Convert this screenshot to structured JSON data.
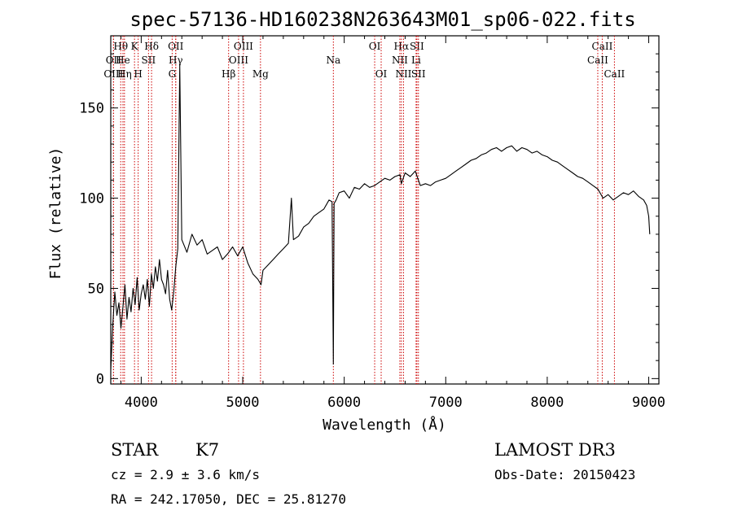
{
  "chart_data": {
    "type": "line",
    "title": "spec-57136-HD160238N263643M01_sp06-022.fits",
    "xlabel": "Wavelength (Å)",
    "ylabel": "Flux (relative)",
    "xlim": [
      3700,
      9100
    ],
    "ylim": [
      -3,
      190
    ],
    "x_ticks": [
      4000,
      5000,
      6000,
      7000,
      8000,
      9000
    ],
    "x_tick_labels": [
      "4000",
      "5000",
      "6000",
      "7000",
      "8000",
      "9000"
    ],
    "y_ticks": [
      0,
      50,
      100,
      150
    ],
    "y_tick_labels": [
      "0",
      "50",
      "100",
      "150"
    ],
    "grid": false,
    "series": [
      {
        "name": "flux",
        "x": [
          3700,
          3720,
          3740,
          3760,
          3780,
          3800,
          3820,
          3840,
          3860,
          3880,
          3900,
          3920,
          3940,
          3960,
          3980,
          4000,
          4020,
          4040,
          4060,
          4080,
          4100,
          4120,
          4140,
          4160,
          4180,
          4200,
          4220,
          4240,
          4260,
          4280,
          4300,
          4320,
          4340,
          4360,
          4380,
          4400,
          4450,
          4500,
          4550,
          4600,
          4650,
          4700,
          4750,
          4800,
          4850,
          4900,
          4950,
          5000,
          5050,
          5100,
          5150,
          5180,
          5200,
          5250,
          5300,
          5350,
          5400,
          5450,
          5480,
          5500,
          5550,
          5600,
          5650,
          5700,
          5750,
          5800,
          5850,
          5880,
          5893,
          5900,
          5920,
          5950,
          6000,
          6050,
          6100,
          6150,
          6200,
          6250,
          6300,
          6350,
          6400,
          6450,
          6500,
          6550,
          6563,
          6600,
          6650,
          6700,
          6750,
          6800,
          6850,
          6900,
          6950,
          7000,
          7050,
          7100,
          7150,
          7200,
          7250,
          7300,
          7350,
          7400,
          7450,
          7500,
          7550,
          7600,
          7650,
          7700,
          7750,
          7800,
          7850,
          7900,
          7950,
          8000,
          8050,
          8100,
          8150,
          8200,
          8250,
          8300,
          8350,
          8400,
          8450,
          8500,
          8550,
          8600,
          8650,
          8700,
          8750,
          8800,
          8850,
          8900,
          8950,
          8980,
          9000,
          9010
        ],
        "y": [
          5,
          30,
          48,
          35,
          42,
          28,
          40,
          52,
          33,
          45,
          37,
          50,
          41,
          56,
          38,
          47,
          52,
          44,
          55,
          40,
          58,
          50,
          62,
          54,
          66,
          55,
          52,
          47,
          60,
          44,
          38,
          48,
          62,
          72,
          174,
          77,
          70,
          80,
          74,
          77,
          69,
          71,
          73,
          66,
          69,
          73,
          68,
          73,
          64,
          58,
          55,
          52,
          60,
          63,
          66,
          69,
          72,
          75,
          100,
          77,
          79,
          84,
          86,
          90,
          92,
          94,
          99,
          98,
          8,
          97,
          99,
          103,
          104,
          100,
          106,
          105,
          108,
          106,
          107,
          109,
          111,
          110,
          112,
          113,
          108,
          114,
          112,
          115,
          107,
          108,
          107,
          109,
          110,
          111,
          113,
          115,
          117,
          119,
          121,
          122,
          124,
          125,
          127,
          128,
          126,
          128,
          129,
          126,
          128,
          127,
          125,
          126,
          124,
          123,
          121,
          120,
          118,
          116,
          114,
          112,
          111,
          109,
          107,
          105,
          100,
          102,
          99,
          101,
          103,
          102,
          104,
          101,
          99,
          96,
          90,
          80
        ]
      }
    ],
    "line_markers": [
      {
        "label": "Hθ",
        "wave": 3798,
        "row": 1
      },
      {
        "label": "OII",
        "wave": 3727,
        "row": 2
      },
      {
        "label": "OIII",
        "wave": 3727,
        "row": 3
      },
      {
        "label": "He",
        "wave": 3820,
        "row": 2
      },
      {
        "label": "Hη",
        "wave": 3835,
        "row": 3
      },
      {
        "label": "K",
        "wave": 3934,
        "row": 1
      },
      {
        "label": "H",
        "wave": 3970,
        "row": 3
      },
      {
        "label": "SII",
        "wave": 4072,
        "row": 2
      },
      {
        "label": "Hδ",
        "wave": 4102,
        "row": 1
      },
      {
        "label": "OII",
        "wave": 4340,
        "row": 1
      },
      {
        "label": "Hγ",
        "wave": 4340,
        "row": 2
      },
      {
        "label": "G",
        "wave": 4305,
        "row": 3
      },
      {
        "label": "OIII",
        "wave": 5007,
        "row": 1
      },
      {
        "label": "OIII",
        "wave": 4959,
        "row": 2
      },
      {
        "label": "Hβ",
        "wave": 4861,
        "row": 3
      },
      {
        "label": "Mg",
        "wave": 5175,
        "row": 3
      },
      {
        "label": "Na",
        "wave": 5893,
        "row": 2
      },
      {
        "label": "OI",
        "wave": 6300,
        "row": 1
      },
      {
        "label": "OI",
        "wave": 6364,
        "row": 3
      },
      {
        "label": "Hα",
        "wave": 6563,
        "row": 1
      },
      {
        "label": "NII",
        "wave": 6548,
        "row": 2
      },
      {
        "label": "NII",
        "wave": 6584,
        "row": 3
      },
      {
        "label": "SII",
        "wave": 6716,
        "row": 1
      },
      {
        "label": "Li",
        "wave": 6708,
        "row": 2
      },
      {
        "label": "SII",
        "wave": 6731,
        "row": 3
      },
      {
        "label": "CaII",
        "wave": 8542,
        "row": 1
      },
      {
        "label": "CaII",
        "wave": 8498,
        "row": 2
      },
      {
        "label": "CaII",
        "wave": 8662,
        "row": 3
      }
    ],
    "marker_color": "#cc0000",
    "line_color": "#000000"
  },
  "info": {
    "object_class": "STAR",
    "subclass": "K7",
    "survey": "LAMOST DR3",
    "redshift": "cz = 2.9 ± 3.6 km/s",
    "obs_date": "Obs-Date: 20150423",
    "coords": "RA = 242.17050, DEC =  25.81270"
  }
}
